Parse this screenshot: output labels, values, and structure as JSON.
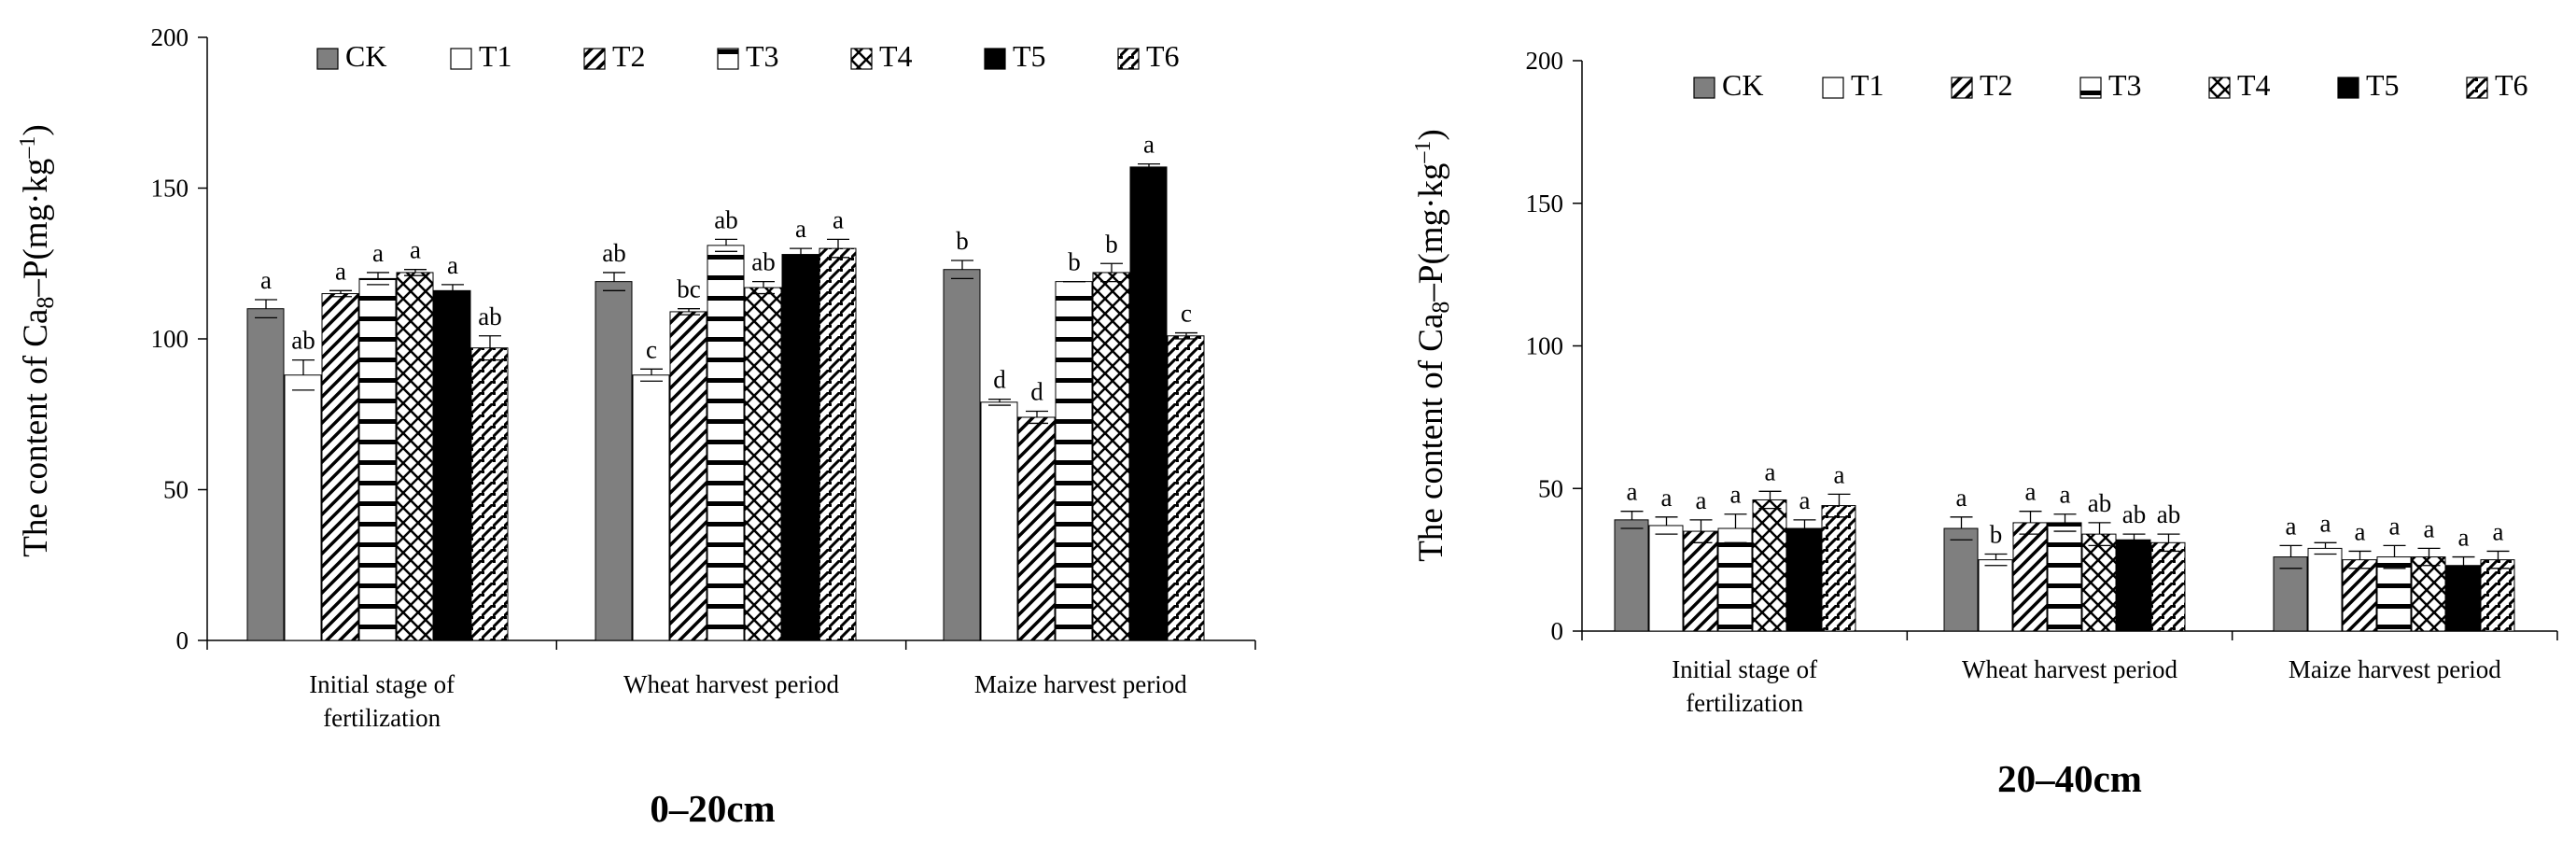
{
  "chart_data": [
    {
      "type": "bar",
      "ylabel_main": "The content of Ca",
      "ylabel_sub": "8",
      "ylabel_unit": "–P(mg·kg",
      "ylabel_sup": "–1",
      "ylabel_close": ")",
      "ylim": [
        0,
        200
      ],
      "yticks": [
        0,
        50,
        100,
        150,
        200
      ],
      "categories": [
        [
          "Initial stage of",
          "fertilization"
        ],
        [
          "Wheat harvest period"
        ],
        [
          "Maize harvest period"
        ]
      ],
      "xlabel": "0–20cm",
      "series": [
        {
          "name": "CK",
          "values": [
            110,
            119,
            123
          ],
          "errors": [
            3,
            3,
            3
          ],
          "letters": [
            "a",
            "ab",
            "b"
          ]
        },
        {
          "name": "T1",
          "values": [
            88,
            88,
            79
          ],
          "errors": [
            5,
            2,
            1
          ],
          "letters": [
            "ab",
            "c",
            "d"
          ]
        },
        {
          "name": "T2",
          "values": [
            115,
            109,
            74
          ],
          "errors": [
            1,
            1,
            2
          ],
          "letters": [
            "a",
            "bc",
            "d"
          ]
        },
        {
          "name": "T3",
          "values": [
            120,
            131,
            119
          ],
          "errors": [
            2,
            2,
            0
          ],
          "letters": [
            "a",
            "ab",
            "b"
          ]
        },
        {
          "name": "T4",
          "values": [
            122,
            117,
            122
          ],
          "errors": [
            1,
            2,
            3
          ],
          "letters": [
            "a",
            "ab",
            "b"
          ]
        },
        {
          "name": "T5",
          "values": [
            116,
            128,
            157
          ],
          "errors": [
            2,
            2,
            1
          ],
          "letters": [
            "a",
            "a",
            "a"
          ]
        },
        {
          "name": "T6",
          "values": [
            97,
            130,
            101
          ],
          "errors": [
            4,
            3,
            1
          ],
          "letters": [
            "ab",
            "a",
            "c"
          ]
        }
      ]
    },
    {
      "type": "bar",
      "ylabel_main": "The content of Ca",
      "ylabel_sub": "8",
      "ylabel_unit": "–P(mg·kg",
      "ylabel_sup": "–1",
      "ylabel_close": ")",
      "ylim": [
        0,
        200
      ],
      "yticks": [
        0,
        50,
        100,
        150,
        200
      ],
      "categories": [
        [
          "Initial stage of",
          "fertilization"
        ],
        [
          "Wheat harvest period"
        ],
        [
          "Maize harvest period"
        ]
      ],
      "xlabel": "20–40cm",
      "series": [
        {
          "name": "CK",
          "values": [
            39,
            36,
            26
          ],
          "errors": [
            3,
            4,
            4
          ],
          "letters": [
            "a",
            "a",
            "a"
          ]
        },
        {
          "name": "T1",
          "values": [
            37,
            25,
            29
          ],
          "errors": [
            3,
            2,
            2
          ],
          "letters": [
            "a",
            "b",
            "a"
          ]
        },
        {
          "name": "T2",
          "values": [
            35,
            38,
            25
          ],
          "errors": [
            4,
            4,
            3
          ],
          "letters": [
            "a",
            "a",
            "a"
          ]
        },
        {
          "name": "T3",
          "values": [
            36,
            38,
            26
          ],
          "errors": [
            5,
            3,
            4
          ],
          "letters": [
            "a",
            "a",
            "a"
          ]
        },
        {
          "name": "T4",
          "values": [
            46,
            34,
            26
          ],
          "errors": [
            3,
            4,
            3
          ],
          "letters": [
            "a",
            "ab",
            "a"
          ]
        },
        {
          "name": "T5",
          "values": [
            36,
            32,
            23
          ],
          "errors": [
            3,
            2,
            3
          ],
          "letters": [
            "a",
            "ab",
            "a"
          ]
        },
        {
          "name": "T6",
          "values": [
            44,
            31,
            25
          ],
          "errors": [
            4,
            3,
            3
          ],
          "letters": [
            "a",
            "ab",
            "a"
          ]
        }
      ]
    }
  ]
}
